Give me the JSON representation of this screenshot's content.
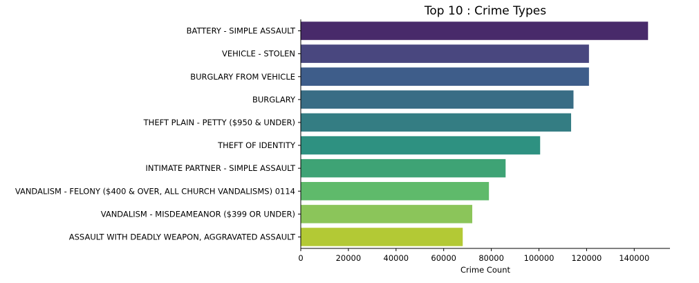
{
  "chart_data": {
    "type": "bar",
    "orientation": "horizontal",
    "title": "Top 10 : Crime Types",
    "xlabel": "Crime Count",
    "ylabel": "",
    "xlim": [
      0,
      155000
    ],
    "xticks": [
      0,
      20000,
      40000,
      60000,
      80000,
      100000,
      120000,
      140000
    ],
    "xtick_labels": [
      "0",
      "20000",
      "40000",
      "60000",
      "80000",
      "100000",
      "120000",
      "140000"
    ],
    "grid": false,
    "categories": [
      "BATTERY - SIMPLE ASSAULT",
      "VEHICLE - STOLEN",
      "BURGLARY FROM VEHICLE",
      "BURGLARY",
      "THEFT PLAIN - PETTY ($950 & UNDER)",
      "THEFT OF IDENTITY",
      "INTIMATE PARTNER - SIMPLE ASSAULT",
      "VANDALISM - FELONY ($400 & OVER, ALL CHURCH VANDALISMS) 0114",
      "VANDALISM - MISDEAMEANOR ($399 OR UNDER)",
      "ASSAULT WITH DEADLY WEAPON, AGGRAVATED ASSAULT"
    ],
    "values": [
      145800,
      121000,
      121000,
      114500,
      113500,
      100500,
      86000,
      79000,
      72000,
      68000
    ],
    "colors": [
      "#482a6a",
      "#49477f",
      "#3e5d8a",
      "#396d85",
      "#347d83",
      "#2e9181",
      "#3ea375",
      "#5fba6b",
      "#8bc55a",
      "#b3c935"
    ]
  }
}
